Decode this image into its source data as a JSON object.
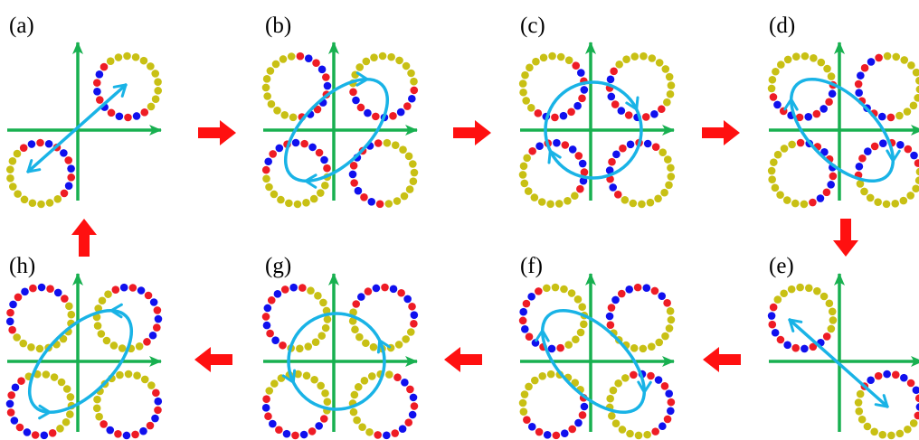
{
  "colors": {
    "axis": "#18b050",
    "trajectory": "#19b3e6",
    "arrow": "#ff1010",
    "dot_red": "#ee1c25",
    "dot_blue": "#1010ee",
    "dot_yellow": "#c8c014"
  },
  "panels": [
    {
      "id": "a",
      "label": "(a)",
      "trajectory_shape": "line",
      "orientation": "diagonal-up-right",
      "ring_count": 2
    },
    {
      "id": "b",
      "label": "(b)",
      "trajectory_shape": "ellipse",
      "orientation": "tilted-up-right",
      "ring_count": 4
    },
    {
      "id": "c",
      "label": "(c)",
      "trajectory_shape": "circle",
      "orientation": "none",
      "ring_count": 4
    },
    {
      "id": "d",
      "label": "(d)",
      "trajectory_shape": "ellipse",
      "orientation": "tilted-down-right",
      "ring_count": 4
    },
    {
      "id": "e",
      "label": "(e)",
      "trajectory_shape": "line",
      "orientation": "diagonal-down-right",
      "ring_count": 2
    },
    {
      "id": "f",
      "label": "(f)",
      "trajectory_shape": "ellipse",
      "orientation": "tilted-down-right",
      "ring_count": 4
    },
    {
      "id": "g",
      "label": "(g)",
      "trajectory_shape": "circle",
      "orientation": "none",
      "ring_count": 4
    },
    {
      "id": "h",
      "label": "(h)",
      "trajectory_shape": "ellipse",
      "orientation": "tilted-up-right",
      "ring_count": 4
    }
  ],
  "transitions": [
    {
      "from": "a",
      "to": "b",
      "direction": "right"
    },
    {
      "from": "b",
      "to": "c",
      "direction": "right"
    },
    {
      "from": "c",
      "to": "d",
      "direction": "right"
    },
    {
      "from": "d",
      "to": "e",
      "direction": "down"
    },
    {
      "from": "e",
      "to": "f",
      "direction": "left"
    },
    {
      "from": "f",
      "to": "g",
      "direction": "left"
    },
    {
      "from": "g",
      "to": "h",
      "direction": "left"
    },
    {
      "from": "h",
      "to": "a",
      "direction": "up"
    }
  ]
}
